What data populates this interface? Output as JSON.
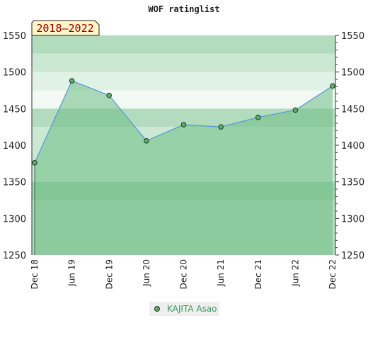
{
  "chart_data": {
    "type": "area",
    "title": "WOF ratinglist",
    "badge": "2018–2022",
    "categories": [
      "Dec 18",
      "Jun 19",
      "Dec 19",
      "Jun 20",
      "Dec 20",
      "Jun 21",
      "Dec 21",
      "Jun 22",
      "Dec 22"
    ],
    "series": [
      {
        "name": "KAJITA Asao",
        "values": [
          1376,
          1488,
          1468,
          1406,
          1428,
          1425,
          1438,
          1448,
          1481
        ]
      }
    ],
    "ylim": [
      1250,
      1550
    ],
    "yticks": [
      1250,
      1300,
      1350,
      1400,
      1450,
      1500,
      1550
    ],
    "grid": true,
    "legend": "bottom",
    "colors": {
      "line": "#5b9bd5",
      "fill": "#6dbd85",
      "marker": "#5cad6b",
      "legend_text": "#3a9a5b",
      "badge_bg": "#fff6c8"
    },
    "bands": [
      {
        "from": 1525,
        "to": 1550,
        "color": "#b3dcbf"
      },
      {
        "from": 1500,
        "to": 1525,
        "color": "#cbe8d3"
      },
      {
        "from": 1475,
        "to": 1500,
        "color": "#e0f1e5"
      },
      {
        "from": 1450,
        "to": 1475,
        "color": "#f2f9f4"
      },
      {
        "from": 1425,
        "to": 1450,
        "color": "#b3dcbf"
      },
      {
        "from": 1400,
        "to": 1425,
        "color": "#cbe8d3"
      },
      {
        "from": 1375,
        "to": 1400,
        "color": "#cbe8d3"
      },
      {
        "from": 1350,
        "to": 1375,
        "color": "#cbe8d3"
      },
      {
        "from": 1325,
        "to": 1350,
        "color": "#9fd3ae"
      },
      {
        "from": 1300,
        "to": 1325,
        "color": "#b3dcbf"
      },
      {
        "from": 1275,
        "to": 1300,
        "color": "#b3dcbf"
      },
      {
        "from": 1250,
        "to": 1275,
        "color": "#b3dcbf"
      }
    ]
  }
}
